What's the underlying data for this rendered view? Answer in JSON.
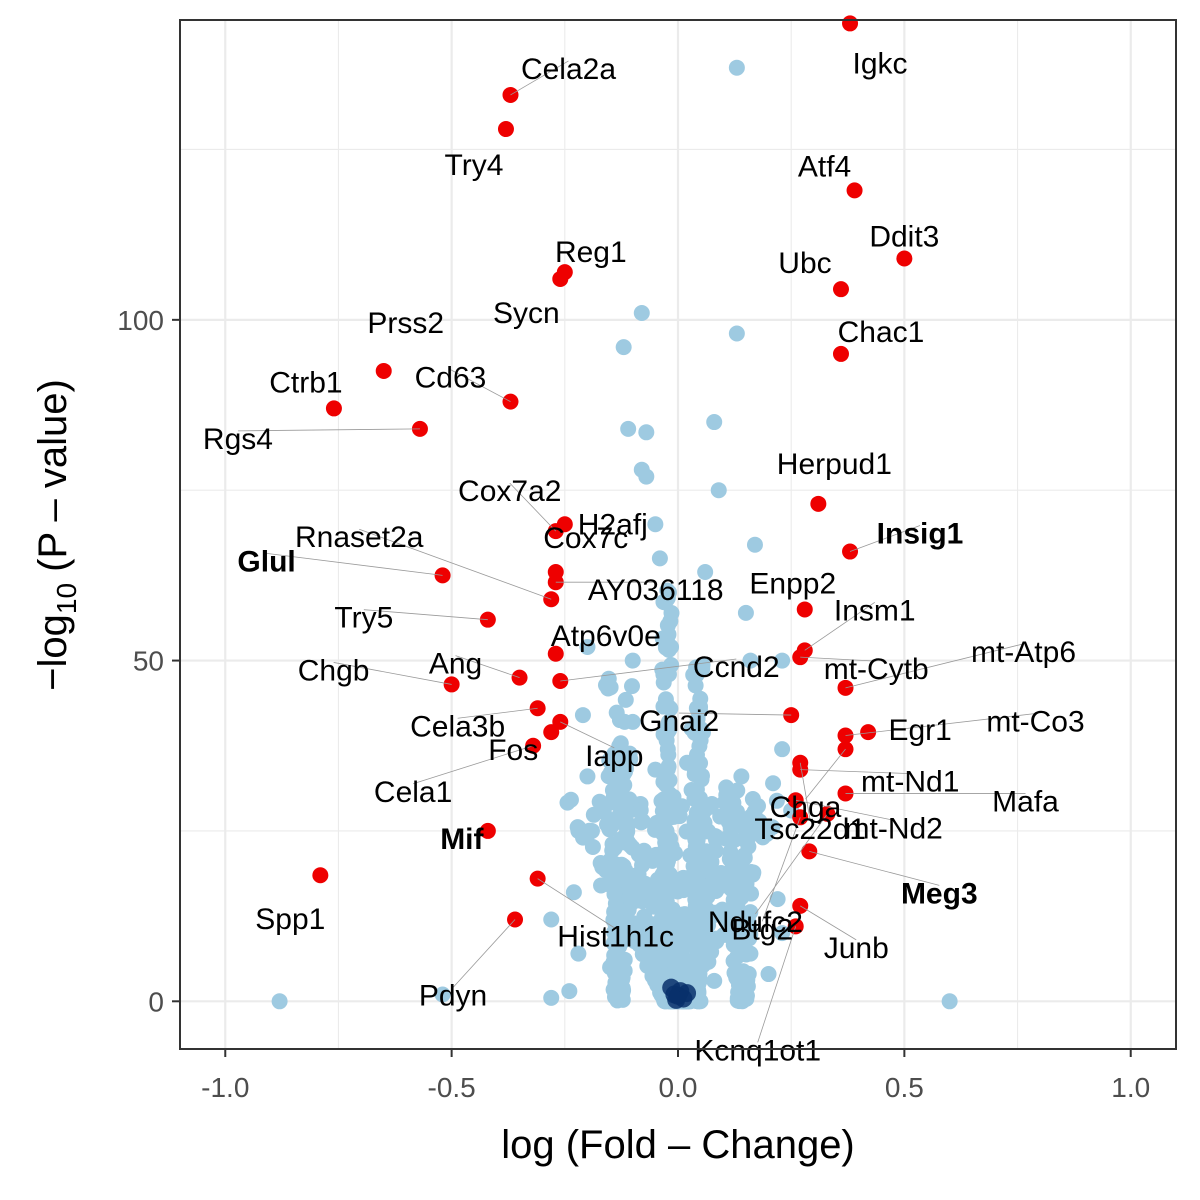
{
  "chart_data": {
    "type": "scatter",
    "title": "",
    "xlabel": "log (Fold – Change)",
    "ylabel_main": "−log",
    "ylabel_sub": "10",
    "ylabel_tail": " (P – value)",
    "xlim": [
      -1.1,
      1.1
    ],
    "ylim": [
      -7,
      144
    ],
    "x_ticks": [
      -1.0,
      -0.5,
      0.0,
      0.5,
      1.0
    ],
    "x_tick_labels": [
      "-1.0",
      "-0.5",
      "0.0",
      "0.5",
      "1.0"
    ],
    "y_ticks": [
      0,
      50,
      100
    ],
    "y_tick_labels": [
      "0",
      "50",
      "100"
    ],
    "grid": true,
    "colors": {
      "significant": "#ee0000",
      "background": "#9ecae1",
      "dense_core": "#08306b",
      "grid": "#ebebeb",
      "panel_border": "#333333"
    },
    "significant_points": [
      {
        "gene": "Igkc",
        "x": 0.38,
        "y": 143.5,
        "bold": false
      },
      {
        "gene": "Cela2a",
        "x": -0.37,
        "y": 133,
        "bold": false
      },
      {
        "gene": "Try4",
        "x": -0.38,
        "y": 128,
        "bold": false
      },
      {
        "gene": "Atf4",
        "x": 0.39,
        "y": 119,
        "bold": false
      },
      {
        "gene": "Ddit3",
        "x": 0.5,
        "y": 109,
        "bold": false
      },
      {
        "gene": "Reg1",
        "x": -0.25,
        "y": 107,
        "bold": false
      },
      {
        "gene": "Sycn",
        "x": -0.26,
        "y": 106,
        "bold": false
      },
      {
        "gene": "Ubc",
        "x": 0.36,
        "y": 104.5,
        "bold": false
      },
      {
        "gene": "Chac1",
        "x": 0.36,
        "y": 95,
        "bold": false
      },
      {
        "gene": "Prss2",
        "x": -0.65,
        "y": 92.5,
        "bold": false
      },
      {
        "gene": "Ctrb1",
        "x": -0.76,
        "y": 87,
        "bold": false
      },
      {
        "gene": "Cd63",
        "x": -0.37,
        "y": 88,
        "bold": false
      },
      {
        "gene": "Rgs4",
        "x": -0.57,
        "y": 84,
        "bold": false
      },
      {
        "gene": "Herpud1",
        "x": 0.31,
        "y": 73,
        "bold": false
      },
      {
        "gene": "Cox7a2",
        "x": -0.27,
        "y": 69,
        "bold": false
      },
      {
        "gene": "H2afj",
        "x": -0.25,
        "y": 70,
        "bold": false
      },
      {
        "gene": "Insig1",
        "x": 0.38,
        "y": 66,
        "bold": true
      },
      {
        "gene": "Glul",
        "x": -0.52,
        "y": 62.5,
        "bold": true
      },
      {
        "gene": "Cox7c",
        "x": -0.27,
        "y": 63,
        "bold": false
      },
      {
        "gene": "AY036118",
        "x": -0.27,
        "y": 61.5,
        "bold": false
      },
      {
        "gene": "Rnaset2a",
        "x": -0.28,
        "y": 59,
        "bold": false
      },
      {
        "gene": "Enpp2",
        "x": 0.28,
        "y": 57.5,
        "bold": false
      },
      {
        "gene": "Try5",
        "x": -0.42,
        "y": 56,
        "bold": false
      },
      {
        "gene": "Insm1",
        "x": 0.28,
        "y": 51.5,
        "bold": false
      },
      {
        "gene": "Atp6v0e",
        "x": -0.27,
        "y": 51,
        "bold": false
      },
      {
        "gene": "mt-Cytb",
        "x": 0.27,
        "y": 50.5,
        "bold": false
      },
      {
        "gene": "Ang",
        "x": -0.35,
        "y": 47.5,
        "bold": false
      },
      {
        "gene": "Chgb",
        "x": -0.5,
        "y": 46.5,
        "bold": false
      },
      {
        "gene": "Ccnd2",
        "x": -0.26,
        "y": 47,
        "bold": false
      },
      {
        "gene": "mt-Atp6",
        "x": 0.37,
        "y": 46,
        "bold": false
      },
      {
        "gene": "Cela3b",
        "x": -0.31,
        "y": 43,
        "bold": false
      },
      {
        "gene": "Gnai2",
        "x": 0.25,
        "y": 42,
        "bold": false
      },
      {
        "gene": "Egr1",
        "x": 0.42,
        "y": 39.5,
        "bold": false
      },
      {
        "gene": "mt-Co3",
        "x": 0.37,
        "y": 39,
        "bold": false
      },
      {
        "gene": "Iapp",
        "x": -0.26,
        "y": 41,
        "bold": false
      },
      {
        "gene": "Fos",
        "x": -0.28,
        "y": 39.5,
        "bold": false
      },
      {
        "gene": "Cela1",
        "x": -0.32,
        "y": 37.5,
        "bold": false
      },
      {
        "gene": "Chga",
        "x": 0.37,
        "y": 37,
        "bold": false
      },
      {
        "gene": "Tsc22d1",
        "x": 0.27,
        "y": 35,
        "bold": false
      },
      {
        "gene": "mt-Nd1",
        "x": 0.27,
        "y": 34,
        "bold": false
      },
      {
        "gene": "Mafa",
        "x": 0.37,
        "y": 30.5,
        "bold": false
      },
      {
        "gene": "mt-Nd2",
        "x": 0.26,
        "y": 29.5,
        "bold": false
      },
      {
        "gene": "Ndufc2",
        "x": 0.33,
        "y": 27.5,
        "bold": false
      },
      {
        "gene": "Btg2",
        "x": 0.27,
        "y": 27,
        "bold": false
      },
      {
        "gene": "Mif",
        "x": -0.42,
        "y": 25,
        "bold": true
      },
      {
        "gene": "Meg3",
        "x": 0.29,
        "y": 22,
        "bold": true
      },
      {
        "gene": "Spp1",
        "x": -0.79,
        "y": 18.5,
        "bold": false
      },
      {
        "gene": "Hist1h1c",
        "x": -0.31,
        "y": 18,
        "bold": false
      },
      {
        "gene": "Junb",
        "x": 0.27,
        "y": 14,
        "bold": false
      },
      {
        "gene": "Pdyn",
        "x": -0.36,
        "y": 12,
        "bold": false
      },
      {
        "gene": "Kcnq1ot1",
        "x": 0.26,
        "y": 11,
        "bold": false
      }
    ],
    "nonsignificant_points": [
      {
        "x": 0.13,
        "y": 137
      },
      {
        "x": -0.08,
        "y": 101
      },
      {
        "x": 0.13,
        "y": 98
      },
      {
        "x": -0.12,
        "y": 96
      },
      {
        "x": 0.08,
        "y": 85
      },
      {
        "x": -0.11,
        "y": 84
      },
      {
        "x": -0.07,
        "y": 83.5
      },
      {
        "x": -0.08,
        "y": 78
      },
      {
        "x": -0.07,
        "y": 77
      },
      {
        "x": 0.09,
        "y": 75
      },
      {
        "x": -0.05,
        "y": 70
      },
      {
        "x": 0.17,
        "y": 67
      },
      {
        "x": -0.04,
        "y": 65
      },
      {
        "x": 0.06,
        "y": 63
      },
      {
        "x": -0.02,
        "y": 60
      },
      {
        "x": 0.15,
        "y": 57
      },
      {
        "x": 0.23,
        "y": 50
      },
      {
        "x": 0.16,
        "y": 50
      },
      {
        "x": -0.2,
        "y": 52
      },
      {
        "x": -0.1,
        "y": 50
      },
      {
        "x": -0.02,
        "y": 48
      },
      {
        "x": 0.04,
        "y": 49
      },
      {
        "x": -0.21,
        "y": 42
      },
      {
        "x": -0.1,
        "y": 41
      },
      {
        "x": -0.02,
        "y": 41
      },
      {
        "x": 0.03,
        "y": 40
      },
      {
        "x": 0.23,
        "y": 37
      },
      {
        "x": 0.14,
        "y": 33
      },
      {
        "x": 0.21,
        "y": 32
      },
      {
        "x": -0.2,
        "y": 33
      },
      {
        "x": -0.12,
        "y": 30
      },
      {
        "x": -0.01,
        "y": 30
      },
      {
        "x": 0.03,
        "y": 31
      },
      {
        "x": 0.25,
        "y": 28
      },
      {
        "x": 0.18,
        "y": 25
      },
      {
        "x": -0.22,
        "y": 25
      },
      {
        "x": -0.11,
        "y": 26
      },
      {
        "x": -0.05,
        "y": 34
      },
      {
        "x": 0.02,
        "y": 35
      },
      {
        "x": -0.23,
        "y": 16
      },
      {
        "x": -0.17,
        "y": 17
      },
      {
        "x": 0.1,
        "y": 17
      },
      {
        "x": 0.22,
        "y": 15
      },
      {
        "x": -0.28,
        "y": 12
      },
      {
        "x": 0.02,
        "y": 10
      },
      {
        "x": 0.23,
        "y": 10
      },
      {
        "x": -0.22,
        "y": 7
      },
      {
        "x": 0.16,
        "y": 7
      },
      {
        "x": -0.88,
        "y": 0
      },
      {
        "x": -0.52,
        "y": 1
      },
      {
        "x": -0.28,
        "y": 0.5
      },
      {
        "x": -0.24,
        "y": 1.5
      },
      {
        "x": 0.6,
        "y": 0
      },
      {
        "x": 0.2,
        "y": 4
      },
      {
        "x": -0.15,
        "y": 5
      },
      {
        "x": 0.08,
        "y": 3
      }
    ],
    "dense_columns": [
      {
        "x": -0.025,
        "y_max": 63,
        "spread": 0.012
      },
      {
        "x": 0.045,
        "y_max": 52,
        "spread": 0.012
      },
      {
        "x": -0.13,
        "y_max": 48,
        "spread": 0.03
      },
      {
        "x": 0.14,
        "y_max": 32,
        "spread": 0.035
      }
    ]
  }
}
